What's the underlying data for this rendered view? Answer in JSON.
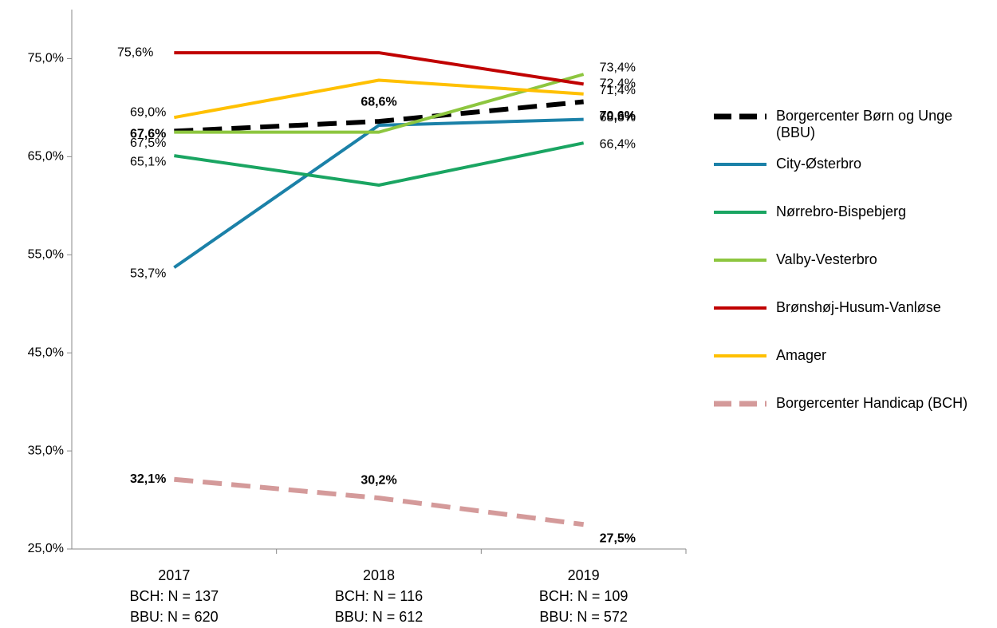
{
  "chart_data": {
    "type": "line",
    "categories": [
      [
        "2017",
        "BCH: N = 137",
        "BBU: N = 620"
      ],
      [
        "2018",
        "BCH: N = 116",
        "BBU: N = 612"
      ],
      [
        "2019",
        "BCH: N = 109",
        "BBU: N = 572"
      ]
    ],
    "ylim": [
      25,
      80
    ],
    "yticks": [
      {
        "value": 25,
        "label": "25,0%"
      },
      {
        "value": 35,
        "label": "35,0%"
      },
      {
        "value": 45,
        "label": "45,0%"
      },
      {
        "value": 55,
        "label": "55,0%"
      },
      {
        "value": 65,
        "label": "65,0%"
      },
      {
        "value": 75,
        "label": "75,0%"
      }
    ],
    "legend": "right",
    "series": [
      {
        "name": "Borgercenter Børn og Unge (BBU)",
        "color": "#000000",
        "dashed": true,
        "values": [
          67.6,
          68.6,
          70.6
        ],
        "value_labels": [
          "67,6%",
          "68,6%",
          "70,6%"
        ]
      },
      {
        "name": "City-Østerbro",
        "color": "#1b81a8",
        "values": [
          53.7,
          68.2,
          68.8
        ],
        "value_labels": [
          "53,7%",
          null,
          "68,8%"
        ]
      },
      {
        "name": "Nørrebro-Bispebjerg",
        "color": "#1aa562",
        "values": [
          65.1,
          62.1,
          66.4
        ],
        "value_labels": [
          "65,1%",
          null,
          "66,4%"
        ]
      },
      {
        "name": "Valby-Vesterbro",
        "color": "#8dc63f",
        "values": [
          67.5,
          67.5,
          73.4
        ],
        "value_labels": [
          "67,5%",
          null,
          "73,4%"
        ]
      },
      {
        "name": "Brønshøj-Husum-Vanløse",
        "color": "#c00000",
        "values": [
          75.6,
          75.6,
          72.4
        ],
        "value_labels": [
          "75,6%",
          null,
          "72,4%"
        ]
      },
      {
        "name": "Amager",
        "color": "#ffc000",
        "values": [
          69.0,
          72.8,
          71.4
        ],
        "value_labels": [
          "69,0%",
          null,
          "71,4%"
        ]
      },
      {
        "name": "Borgercenter Handicap (BCH)",
        "color": "#d49a9a",
        "dashed": true,
        "values": [
          32.1,
          30.2,
          27.5
        ],
        "value_labels": [
          "32,1%",
          "30,2%",
          "27,5%"
        ]
      }
    ]
  }
}
